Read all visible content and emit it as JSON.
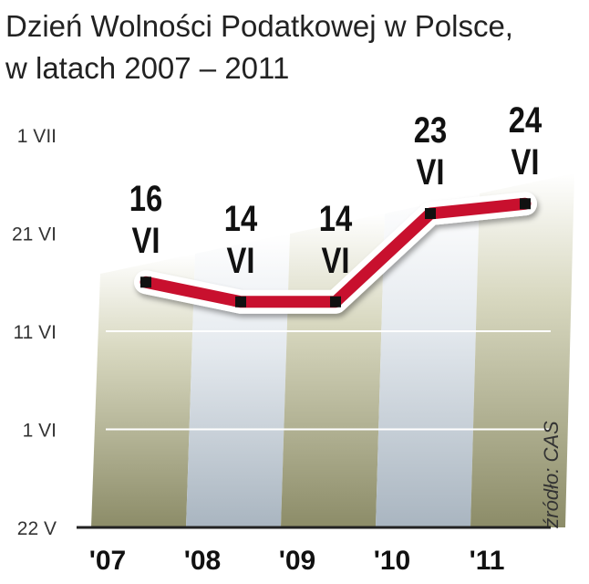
{
  "chart_data": {
    "type": "line",
    "title": [
      "Dzień Wolności Podatkowej w Polsce,",
      "w latach 2007 – 2011"
    ],
    "categories": [
      "'07",
      "'08",
      "'09",
      "'10",
      "'11"
    ],
    "series": [
      {
        "name": "Dzień Wolności Podatkowej",
        "color": "#c8102e",
        "values": [
          25,
          23,
          23,
          32,
          33
        ],
        "value_labels": [
          "16 VI",
          "14 VI",
          "14 VI",
          "23 VI",
          "24 VI"
        ]
      }
    ],
    "ylim": [
      0,
      40
    ],
    "yticks": [
      {
        "value": 0,
        "label": "22 V"
      },
      {
        "value": 10,
        "label": "1 VI"
      },
      {
        "value": 20,
        "label": "11 VI"
      },
      {
        "value": 30,
        "label": "21 VI"
      },
      {
        "value": 40,
        "label": "1 VII"
      }
    ],
    "grid": true,
    "source": "źródło: CAS"
  }
}
